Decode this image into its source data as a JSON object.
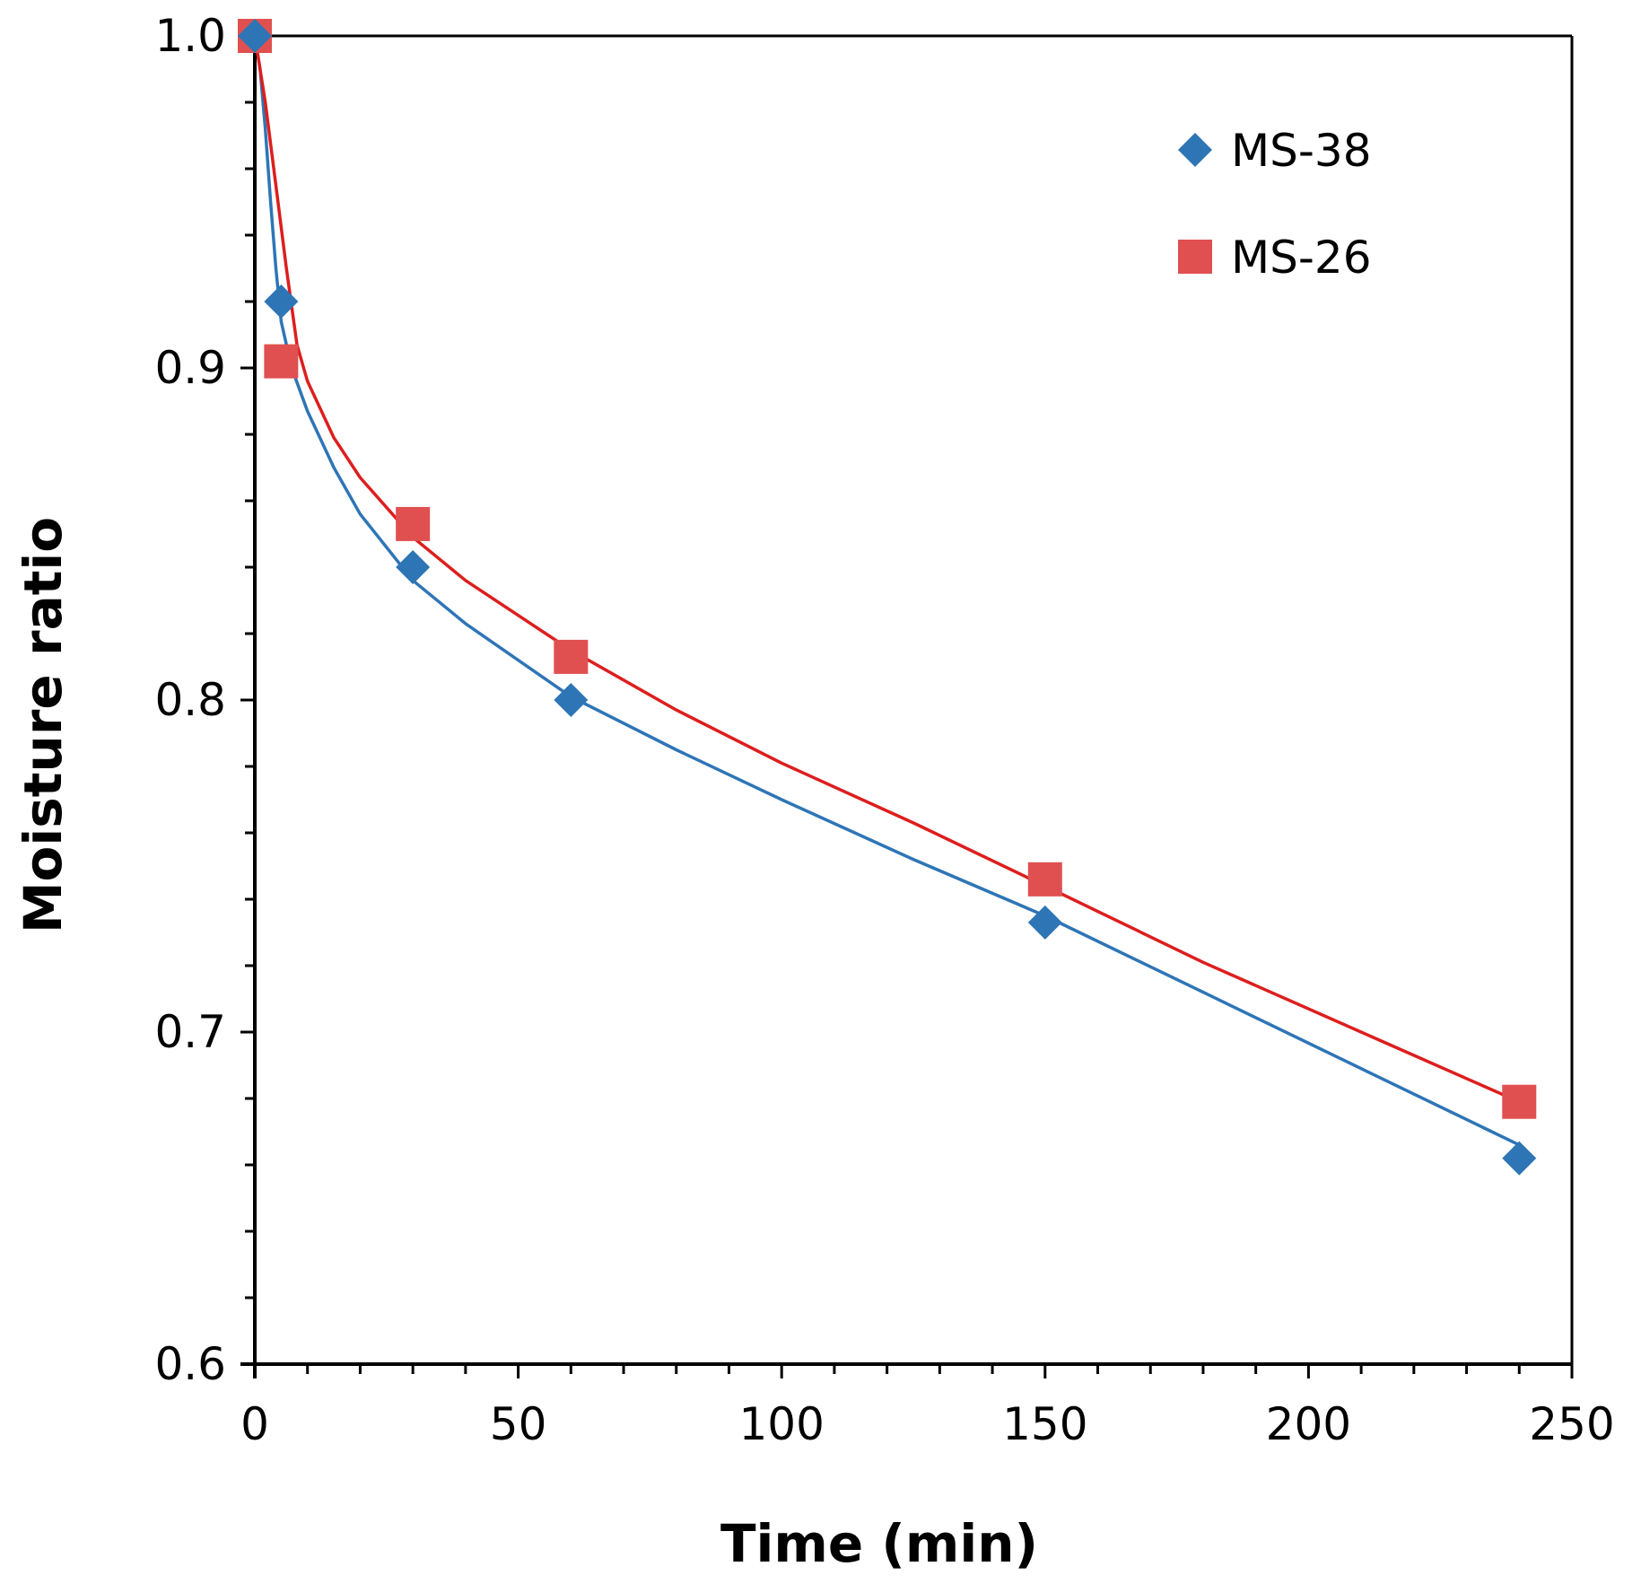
{
  "chart_data": {
    "type": "scatter",
    "title": "",
    "xlabel": "Time (min)",
    "ylabel": "Moisture ratio",
    "xlim": [
      0,
      250
    ],
    "ylim": [
      0.6,
      1.0
    ],
    "xticks": [
      0,
      50,
      100,
      150,
      200,
      250
    ],
    "xtick_labels": [
      "0",
      "50",
      "100",
      "150",
      "200",
      "250"
    ],
    "yticks": [
      0.6,
      0.7,
      0.8,
      0.9,
      1.0
    ],
    "ytick_labels": [
      "0.6",
      "0.7",
      "0.8",
      "0.9",
      "1.0"
    ],
    "x_minor_step": 10,
    "y_minor_step": 0.02,
    "grid": false,
    "legend_position": "top-right",
    "series": [
      {
        "name": "MS-38",
        "marker": "diamond",
        "color": "#2e75b6",
        "line_color": "#2e75b6",
        "x": [
          0,
          5,
          30,
          60,
          150,
          240
        ],
        "y": [
          1.0,
          0.92,
          0.84,
          0.8,
          0.733,
          0.662
        ],
        "fit_x": [
          0,
          1,
          2,
          3,
          4,
          5,
          7,
          10,
          15,
          20,
          30,
          40,
          60,
          80,
          100,
          125,
          150,
          180,
          210,
          240
        ],
        "fit_y": [
          1.0,
          0.99,
          0.972,
          0.95,
          0.93,
          0.914,
          0.9,
          0.887,
          0.87,
          0.856,
          0.836,
          0.823,
          0.801,
          0.785,
          0.77,
          0.752,
          0.735,
          0.712,
          0.689,
          0.666
        ]
      },
      {
        "name": "MS-26",
        "marker": "square",
        "color": "#e05050",
        "line_color": "#dd1e1e",
        "x": [
          0,
          5,
          30,
          60,
          150,
          240
        ],
        "y": [
          1.0,
          0.902,
          0.853,
          0.813,
          0.746,
          0.679
        ],
        "fit_x": [
          0,
          2,
          4,
          6,
          8,
          10,
          15,
          20,
          30,
          40,
          60,
          80,
          100,
          125,
          150,
          180,
          210,
          240
        ],
        "fit_y": [
          1.0,
          0.98,
          0.955,
          0.93,
          0.907,
          0.896,
          0.879,
          0.867,
          0.849,
          0.836,
          0.815,
          0.797,
          0.781,
          0.763,
          0.744,
          0.721,
          0.7,
          0.679
        ]
      }
    ]
  }
}
